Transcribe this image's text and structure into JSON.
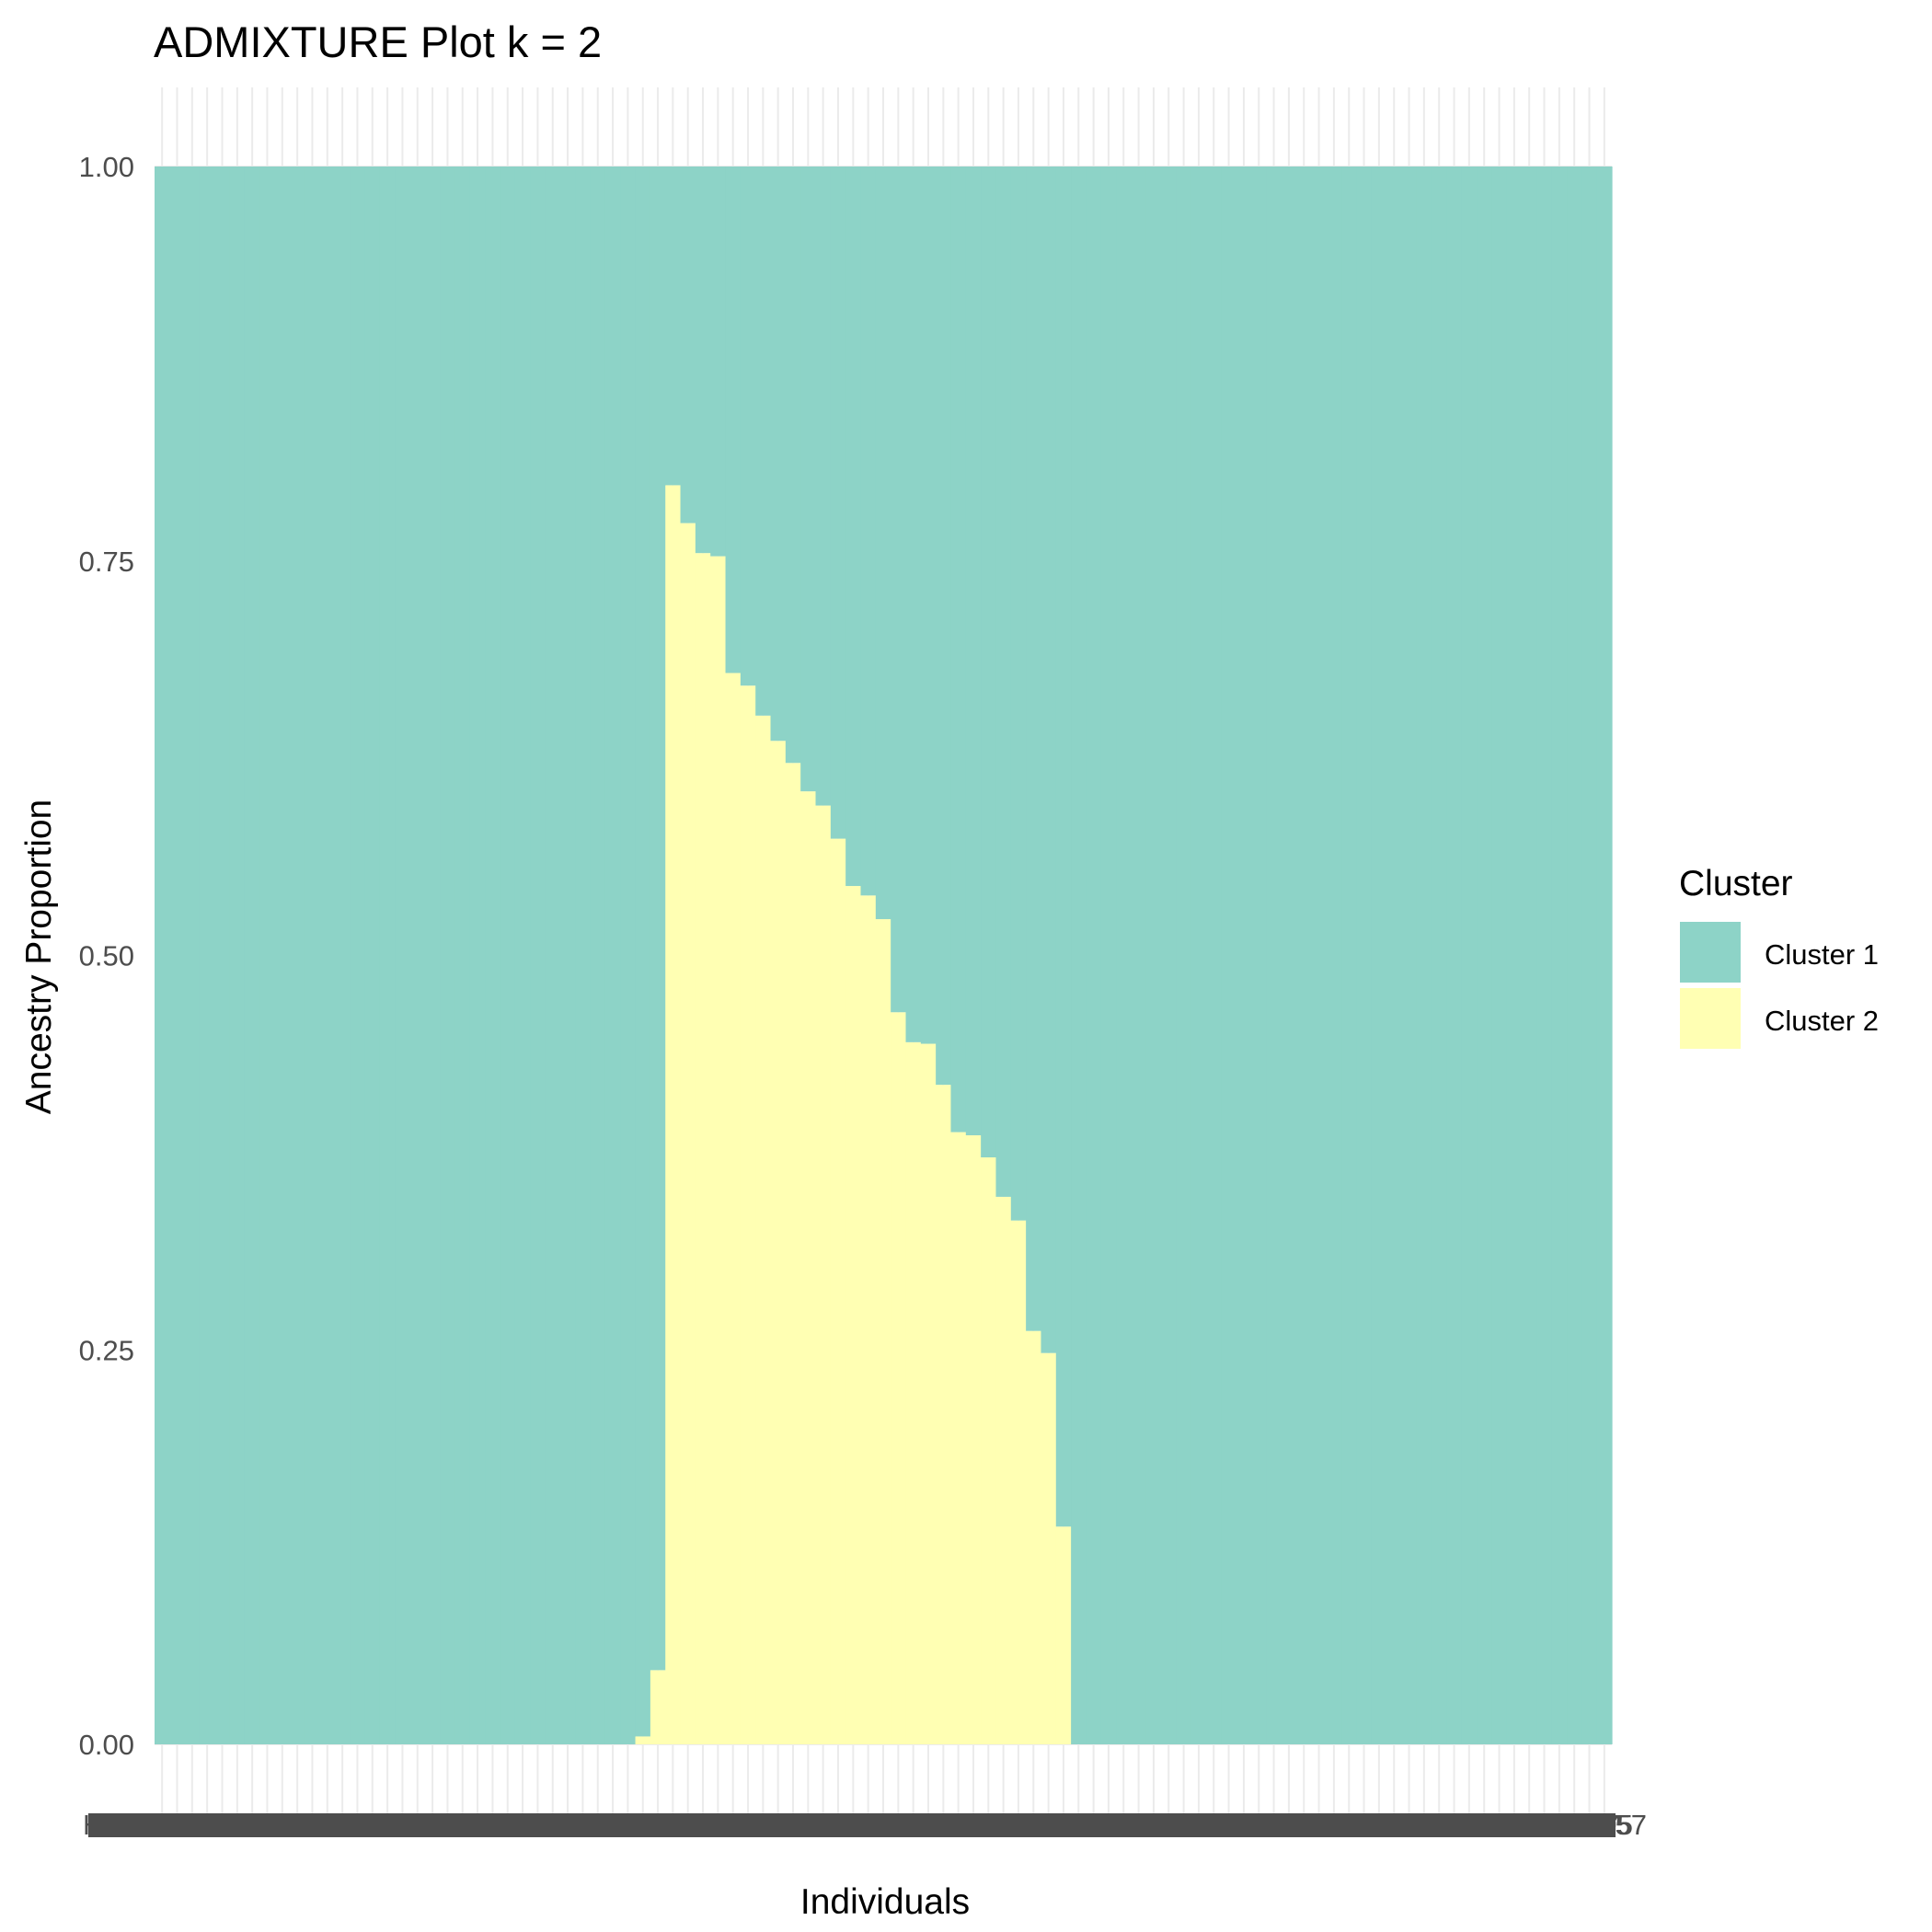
{
  "chart_data": {
    "type": "bar",
    "stacked": true,
    "title": "ADMIXTURE Plot k = 2",
    "xlabel": "Individuals",
    "ylabel": "Ancestry Proportion",
    "ylim": [
      0,
      1
    ],
    "yticks": [
      "0.00",
      "0.25",
      "0.50",
      "0.75",
      "1.00"
    ],
    "grid": true,
    "legend": {
      "title": "Cluster",
      "placement": "right",
      "entries": [
        {
          "name": "Cluster 1",
          "color": "#8dd3c7"
        },
        {
          "name": "Cluster 2",
          "color": "#ffffb3"
        }
      ]
    },
    "x_tick_labels_overlapping_visible_fragments": [
      "HG0",
      "7",
      "95",
      "57"
    ],
    "n_individuals": 97,
    "series": [
      {
        "name": "Cluster 1",
        "color": "#8dd3c7",
        "values": [
          1,
          1,
          1,
          1,
          1,
          1,
          1,
          1,
          1,
          1,
          1,
          1,
          1,
          1,
          1,
          1,
          1,
          1,
          1,
          1,
          1,
          1,
          1,
          1,
          1,
          1,
          1,
          1,
          1,
          1,
          1,
          1,
          0.995,
          0.953,
          0.202,
          0.226,
          0.245,
          0.247,
          0.321,
          0.329,
          0.348,
          0.364,
          0.378,
          0.396,
          0.405,
          0.426,
          0.456,
          0.462,
          0.477,
          0.536,
          0.555,
          0.556,
          0.582,
          0.612,
          0.614,
          0.628,
          0.653,
          0.668,
          0.738,
          0.752,
          0.862,
          1,
          1,
          1,
          1,
          1,
          1,
          1,
          1,
          1,
          1,
          1,
          1,
          1,
          1,
          1,
          1,
          1,
          1,
          1,
          1,
          1,
          1,
          1,
          1,
          1,
          1,
          1,
          1,
          1,
          1,
          1,
          1,
          1,
          1,
          1,
          1
        ]
      },
      {
        "name": "Cluster 2",
        "color": "#ffffb3",
        "values": [
          0,
          0,
          0,
          0,
          0,
          0,
          0,
          0,
          0,
          0,
          0,
          0,
          0,
          0,
          0,
          0,
          0,
          0,
          0,
          0,
          0,
          0,
          0,
          0,
          0,
          0,
          0,
          0,
          0,
          0,
          0,
          0,
          0.005,
          0.047,
          0.798,
          0.774,
          0.755,
          0.753,
          0.679,
          0.671,
          0.652,
          0.636,
          0.622,
          0.604,
          0.595,
          0.574,
          0.544,
          0.538,
          0.523,
          0.464,
          0.445,
          0.444,
          0.418,
          0.388,
          0.386,
          0.372,
          0.347,
          0.332,
          0.262,
          0.248,
          0.138,
          0,
          0,
          0,
          0,
          0,
          0,
          0,
          0,
          0,
          0,
          0,
          0,
          0,
          0,
          0,
          0,
          0,
          0,
          0,
          0,
          0,
          0,
          0,
          0,
          0,
          0,
          0,
          0,
          0,
          0,
          0,
          0,
          0,
          0,
          0,
          0
        ]
      }
    ]
  }
}
